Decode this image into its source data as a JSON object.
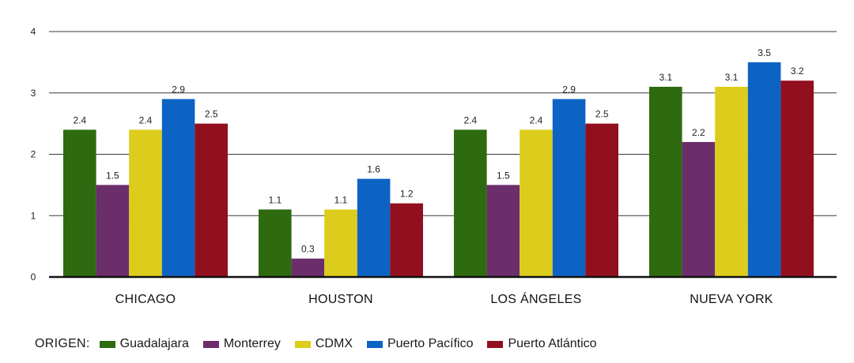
{
  "chart_data": {
    "type": "bar",
    "title": "",
    "xlabel": "",
    "ylabel": "",
    "ylim": [
      0,
      4
    ],
    "yticks": [
      "0",
      "1",
      "2",
      "3",
      "4"
    ],
    "grid": true,
    "categories": [
      "CHICAGO",
      "HOUSTON",
      "LOS ÁNGELES",
      "NUEVA YORK"
    ],
    "series": [
      {
        "name": "Guadalajara",
        "color": "#2e6b10",
        "values": [
          2.4,
          1.1,
          2.4,
          3.1
        ]
      },
      {
        "name": "Monterrey",
        "color": "#6b2e6b",
        "values": [
          1.5,
          0.3,
          1.5,
          2.2
        ]
      },
      {
        "name": "CDMX",
        "color": "#dccd1c",
        "values": [
          2.4,
          1.1,
          2.4,
          3.1
        ]
      },
      {
        "name": "Puerto Pacífico",
        "color": "#0d63c4",
        "values": [
          2.9,
          1.6,
          2.9,
          3.5
        ]
      },
      {
        "name": "Puerto Atlántico",
        "color": "#920f1e",
        "values": [
          2.5,
          1.2,
          2.5,
          3.2
        ]
      }
    ],
    "legend_title": "ORIGEN:",
    "legend_position": "bottom-left"
  }
}
